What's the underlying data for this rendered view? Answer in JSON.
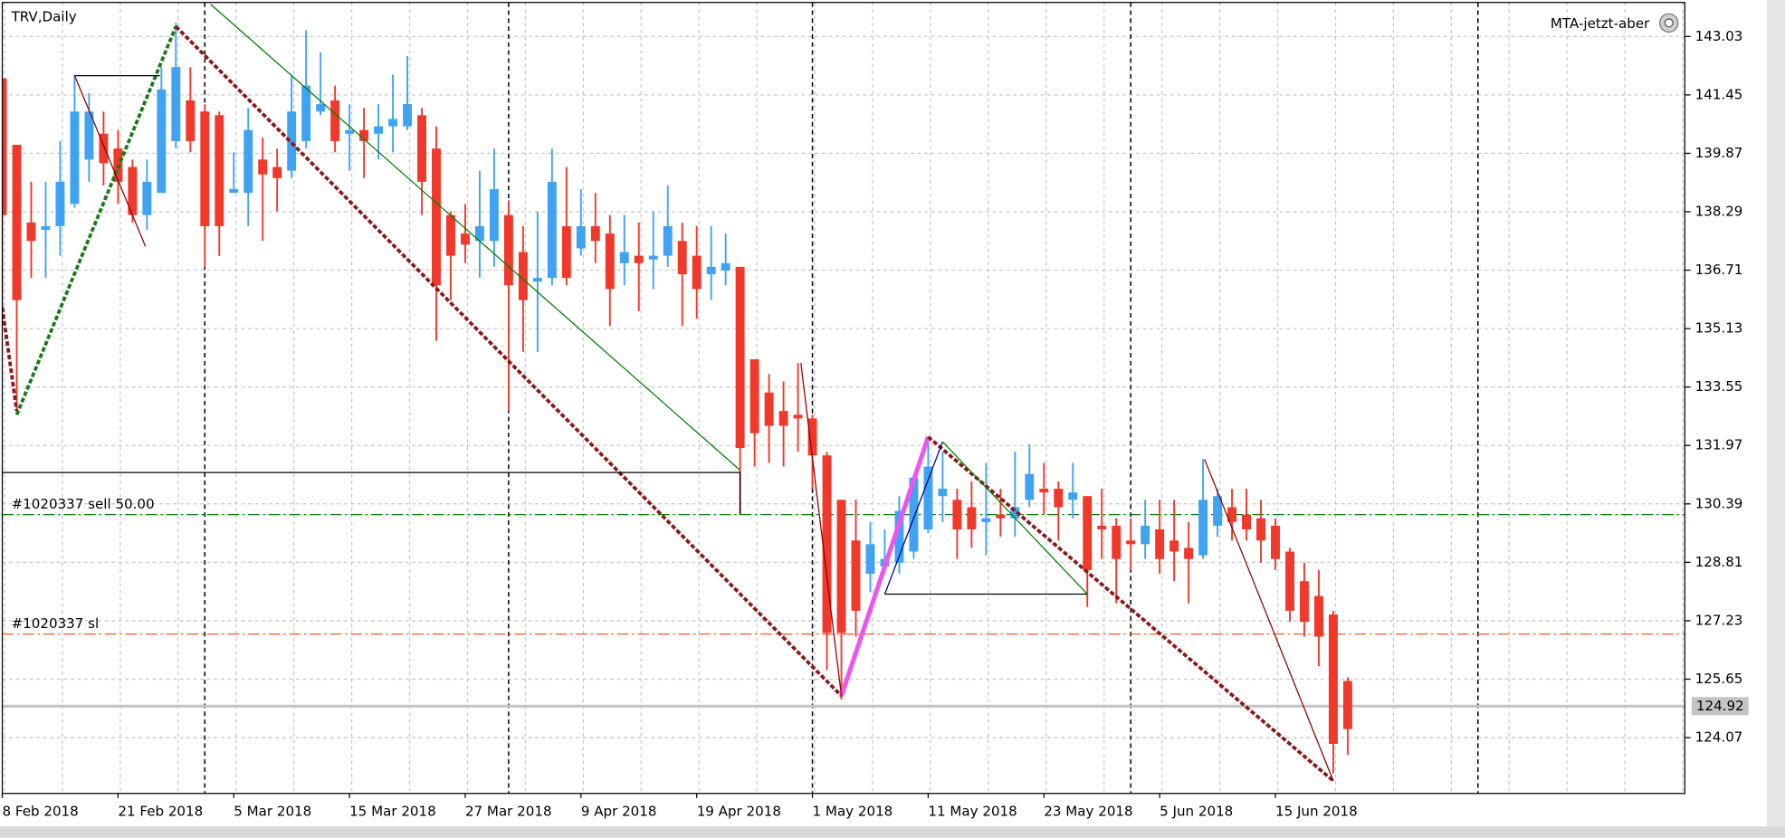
{
  "chart_data": {
    "type": "candlestick",
    "title": "TRV,Daily",
    "indicator_label": "MTA-jetzt-aber",
    "categories": [
      "8 Feb 2018",
      null,
      null,
      null,
      null,
      null,
      null,
      null,
      "21 Feb 2018",
      null,
      null,
      null,
      null,
      null,
      null,
      null,
      "5 Mar 2018",
      null,
      null,
      null,
      null,
      null,
      null,
      null,
      "15 Mar 2018",
      null,
      null,
      null,
      null,
      null,
      null,
      null,
      "27 Mar 2018",
      null,
      null,
      null,
      null,
      null,
      null,
      null,
      "9 Apr 2018",
      null,
      null,
      null,
      null,
      null,
      null,
      null,
      "19 Apr 2018",
      null,
      null,
      null,
      null,
      null,
      null,
      null,
      "1 May 2018",
      null,
      null,
      null,
      null,
      null,
      null,
      null,
      "11 May 2018",
      null,
      null,
      null,
      null,
      null,
      null,
      null,
      "23 May 2018",
      null,
      null,
      null,
      null,
      null,
      null,
      null,
      "5 Jun 2018",
      null,
      null,
      null,
      null,
      null,
      null,
      null,
      "15 Jun 2018",
      null,
      null,
      null,
      null,
      null
    ],
    "open": [
      141.9,
      140.1,
      138.0,
      137.8,
      137.9,
      138.5,
      139.7,
      140.4,
      140.0,
      139.5,
      138.2,
      138.8,
      140.2,
      141.3,
      141.0,
      140.9,
      138.8,
      138.8,
      139.7,
      139.5,
      139.4,
      140.2,
      141.0,
      141.3,
      140.4,
      140.5,
      140.4,
      140.6,
      140.6,
      140.9,
      140.0,
      138.2,
      137.7,
      137.5,
      137.5,
      138.2,
      137.2,
      136.4,
      136.5,
      137.9,
      137.3,
      137.9,
      137.7,
      136.9,
      137.1,
      137.0,
      137.1,
      137.5,
      137.1,
      136.6,
      136.7,
      136.8,
      134.3,
      133.4,
      132.9,
      132.8,
      132.7,
      131.7,
      130.5,
      129.4,
      128.5,
      128.7,
      128.8,
      129.1,
      129.7,
      130.6,
      130.5,
      130.3,
      129.9,
      130.1,
      130.0,
      130.5,
      130.8,
      130.8,
      130.5,
      130.6,
      129.8,
      129.8,
      129.4,
      129.3,
      129.7,
      129.4,
      129.2,
      129.0,
      129.8,
      130.3,
      130.1,
      130.0,
      129.8,
      129.1,
      128.3,
      127.9,
      127.4,
      125.6
    ],
    "high": [
      141.9,
      140.1,
      139.1,
      139.1,
      140.2,
      142.0,
      141.5,
      141.0,
      140.5,
      139.7,
      139.7,
      142.2,
      143.4,
      142.2,
      141.2,
      141.0,
      139.9,
      141.1,
      140.3,
      140.0,
      142.0,
      143.2,
      142.6,
      141.7,
      141.2,
      141.1,
      141.2,
      142.0,
      142.5,
      141.1,
      140.6,
      138.3,
      138.5,
      139.4,
      140.0,
      138.6,
      137.9,
      138.3,
      140.0,
      139.5,
      138.9,
      138.8,
      138.2,
      138.2,
      138.0,
      138.3,
      139.0,
      138.0,
      137.9,
      137.9,
      137.7,
      136.8,
      134.3,
      133.9,
      133.7,
      134.2,
      132.8,
      131.8,
      130.5,
      130.5,
      129.9,
      129.7,
      130.6,
      131.2,
      132.1,
      131.8,
      130.8,
      131.0,
      131.5,
      130.8,
      131.8,
      132.0,
      131.5,
      131.0,
      131.5,
      130.6,
      130.8,
      130.0,
      130.0,
      130.5,
      130.5,
      130.5,
      129.9,
      131.6,
      130.8,
      130.8,
      130.8,
      130.5,
      130.0,
      129.2,
      128.8,
      128.6,
      127.5,
      125.7
    ],
    "low": [
      135.7,
      132.9,
      136.5,
      136.5,
      137.1,
      138.4,
      139.1,
      139.0,
      138.5,
      138.0,
      137.8,
      138.8,
      140.0,
      139.9,
      136.8,
      137.1,
      138.8,
      137.9,
      137.5,
      138.3,
      139.2,
      140.0,
      140.9,
      139.9,
      139.4,
      139.2,
      139.7,
      139.9,
      140.5,
      138.2,
      134.8,
      135.9,
      136.9,
      136.5,
      136.8,
      132.9,
      134.5,
      134.5,
      136.3,
      136.3,
      137.1,
      136.9,
      135.2,
      136.3,
      135.6,
      136.2,
      136.8,
      135.2,
      135.4,
      135.9,
      136.3,
      130.1,
      131.4,
      131.5,
      131.4,
      131.8,
      130.8,
      125.9,
      125.1,
      126.8,
      128.0,
      128.5,
      128.5,
      128.9,
      129.6,
      129.9,
      128.9,
      129.2,
      129.0,
      129.5,
      129.5,
      130.3,
      130.1,
      129.4,
      130.0,
      127.6,
      128.9,
      127.7,
      128.6,
      128.9,
      128.5,
      128.3,
      127.7,
      128.9,
      129.5,
      129.4,
      129.4,
      128.8,
      128.6,
      127.2,
      126.8,
      126.0,
      123.1,
      123.6
    ],
    "close": [
      138.2,
      135.9,
      137.5,
      137.9,
      139.1,
      141.0,
      141.0,
      139.6,
      139.1,
      138.2,
      139.1,
      141.6,
      142.2,
      140.2,
      137.9,
      137.9,
      138.9,
      140.5,
      139.3,
      139.2,
      141.0,
      141.7,
      141.2,
      140.2,
      140.5,
      140.2,
      140.6,
      140.8,
      141.2,
      139.1,
      136.3,
      137.1,
      137.4,
      137.9,
      138.9,
      136.3,
      135.9,
      136.5,
      139.1,
      136.5,
      137.9,
      137.5,
      136.2,
      137.2,
      136.9,
      137.1,
      137.9,
      136.6,
      136.2,
      136.8,
      136.9,
      131.9,
      132.3,
      132.5,
      132.5,
      132.7,
      131.7,
      126.9,
      126.9,
      127.5,
      129.3,
      128.9,
      130.2,
      131.1,
      131.4,
      130.8,
      129.7,
      129.7,
      130.0,
      130.0,
      130.3,
      131.2,
      130.7,
      130.3,
      130.7,
      128.6,
      129.7,
      128.9,
      129.3,
      129.8,
      128.9,
      129.1,
      128.9,
      130.5,
      130.6,
      129.9,
      129.7,
      129.4,
      128.9,
      127.5,
      127.2,
      126.8,
      123.9,
      124.3
    ],
    "up_color": "#3fa3f2",
    "down_color": "#f0382b",
    "xlim": [
      0,
      116.3
    ],
    "ylim": [
      122.56,
      143.95
    ],
    "yticks": [
      143.03,
      141.45,
      139.87,
      138.29,
      136.71,
      135.13,
      133.55,
      131.97,
      130.39,
      128.81,
      127.23,
      125.65,
      124.07
    ],
    "grid": true,
    "period_separators": [
      14,
      35,
      56,
      78,
      102
    ],
    "bid": 124.92,
    "order_lines": [
      {
        "label": "#1020337 sell 50.00",
        "value": 130.1,
        "color": "#0a7a0a"
      },
      {
        "label": "#1020337 sl",
        "value": 126.87,
        "color": "#ff5a1f"
      }
    ],
    "objects": [
      {
        "color": "#8b1a1a",
        "width": 3,
        "dash": "4 2",
        "x": [
          0,
          1
        ],
        "y": [
          135.7,
          132.9
        ]
      },
      {
        "color": "#1a7a1a",
        "width": 3,
        "dash": "4 2",
        "x": [
          1,
          12
        ],
        "y": [
          132.8,
          143.3
        ]
      },
      {
        "color": "#8b1a1a",
        "width": 3,
        "dash": "4 2",
        "x": [
          12,
          58
        ],
        "y": [
          143.3,
          125.2
        ]
      },
      {
        "color": "#ee55ee",
        "width": 4,
        "x": [
          58,
          64
        ],
        "y": [
          125.2,
          132.2
        ]
      },
      {
        "color": "#8b1a1a",
        "width": 3,
        "dash": "4 2",
        "x": [
          64,
          92
        ],
        "y": [
          132.2,
          122.9
        ]
      },
      {
        "color": "#000000",
        "width": 1,
        "x": [
          5,
          10.9
        ],
        "y": [
          141.97,
          141.97
        ]
      },
      {
        "color": "#8b0000",
        "width": 1,
        "x": [
          5,
          9.9
        ],
        "y": [
          141.97,
          137.35
        ]
      },
      {
        "color": "#008000",
        "width": 1,
        "x": [
          14.4,
          51
        ],
        "y": [
          143.9,
          131.3
        ]
      },
      {
        "color": "#000000",
        "width": 1,
        "x": [
          0,
          51,
          51
        ],
        "y": [
          131.24,
          131.24,
          130.1
        ]
      },
      {
        "color": "#8b0000",
        "width": 1,
        "x": [
          55.2,
          58
        ],
        "y": [
          134.2,
          125.2
        ]
      },
      {
        "color": "#000080",
        "width": 1,
        "x": [
          61,
          65
        ],
        "y": [
          127.95,
          132.07
        ]
      },
      {
        "color": "#000000",
        "width": 1,
        "x": [
          61,
          75
        ],
        "y": [
          127.95,
          127.95
        ]
      },
      {
        "color": "#008000",
        "width": 1,
        "x": [
          65,
          75
        ],
        "y": [
          132.07,
          127.95
        ]
      },
      {
        "color": "#8b0000",
        "width": 1,
        "x": [
          83.1,
          92
        ],
        "y": [
          131.6,
          122.9
        ]
      }
    ]
  }
}
